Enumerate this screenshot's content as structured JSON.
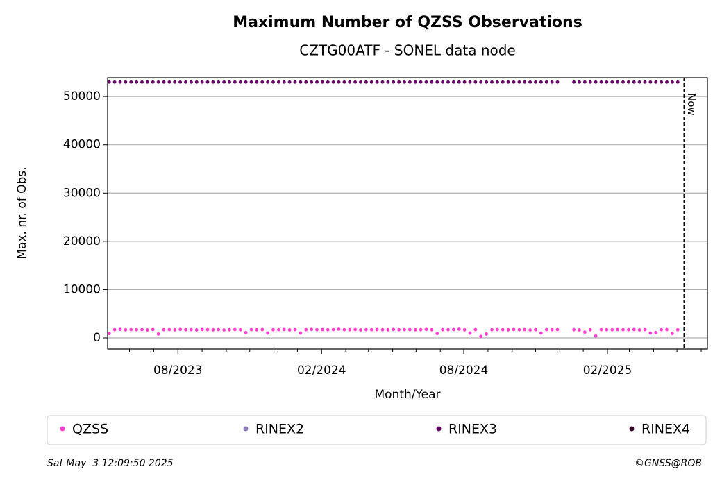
{
  "chart_data": {
    "type": "scatter",
    "title": "Maximum Number of QZSS Observations",
    "subtitle": "CZTG00ATF - SONEL data node",
    "xlabel": "Month/Year",
    "ylabel": "Max. nr. of Obs.",
    "x": [
      -88,
      -81,
      -74,
      -67,
      -60,
      -53,
      -46,
      -39,
      -32,
      -25,
      -18,
      -11,
      -4,
      3,
      10,
      17,
      24,
      31,
      38,
      45,
      52,
      59,
      66,
      73,
      80,
      87,
      94,
      101,
      108,
      115,
      122,
      129,
      136,
      143,
      150,
      157,
      164,
      171,
      178,
      185,
      192,
      199,
      206,
      213,
      220,
      227,
      234,
      241,
      248,
      255,
      262,
      269,
      276,
      283,
      290,
      297,
      304,
      311,
      318,
      325,
      332,
      339,
      346,
      353,
      360,
      367,
      374,
      381,
      388,
      395,
      402,
      409,
      416,
      423,
      430,
      437,
      444,
      451,
      458,
      465,
      472,
      479,
      486,
      493,
      500,
      507,
      514,
      521,
      528,
      535,
      542,
      549,
      556,
      563,
      570,
      577,
      584,
      591,
      598,
      605,
      612,
      619,
      626,
      633,
      640
    ],
    "series": [
      {
        "name": "QZSS",
        "color": "#ff40cf",
        "values": [
          900,
          1700,
          1750,
          1680,
          1720,
          1690,
          1710,
          1650,
          1740,
          800,
          1700,
          1720,
          1680,
          1750,
          1690,
          1710,
          1660,
          1730,
          1700,
          1680,
          1720,
          1650,
          1700,
          1740,
          1690,
          1100,
          1710,
          1680,
          1720,
          1000,
          1700,
          1690,
          1730,
          1660,
          1710,
          1000,
          1700,
          1750,
          1690,
          1720,
          1680,
          1710,
          1800,
          1690,
          1700,
          1730,
          1660,
          1710,
          1690,
          1720,
          1700,
          1680,
          1740,
          1690,
          1710,
          1720,
          1680,
          1700,
          1750,
          1690,
          900,
          1710,
          1700,
          1730,
          1800,
          1680,
          1000,
          1720,
          300,
          800,
          1690,
          1710,
          1700,
          1680,
          1740,
          1690,
          1720,
          1650,
          1700,
          1000,
          1710,
          1690,
          1720,
          null,
          null,
          1700,
          1650,
          1200,
          1690,
          400,
          1710,
          1700,
          1680,
          1720,
          1690,
          1700,
          1730,
          1660,
          1710,
          1000,
          1100,
          1700,
          1720,
          900,
          1680
        ]
      },
      {
        "name": "RINEX2",
        "color": "#8878b8",
        "values": [
          null,
          null,
          null,
          null,
          null,
          null,
          null,
          null,
          null,
          null,
          null,
          null,
          null,
          null,
          null,
          null,
          null,
          null,
          null,
          null,
          null,
          null,
          null,
          null,
          null,
          null,
          null,
          null,
          null,
          null,
          null,
          null,
          null,
          null,
          null,
          null,
          null,
          null,
          null,
          null,
          null,
          null,
          null,
          null,
          null,
          null,
          null,
          null,
          null,
          null,
          null,
          null,
          null,
          null,
          null,
          null,
          null,
          null,
          null,
          null,
          null,
          null,
          null,
          null,
          null,
          null,
          null,
          null,
          null,
          null,
          null,
          null,
          null,
          null,
          null,
          null,
          null,
          null,
          null,
          null,
          null,
          null,
          null,
          null,
          null,
          null,
          null,
          null,
          null,
          null,
          null,
          null,
          null,
          null,
          null,
          null,
          null,
          null,
          null,
          null,
          null,
          null,
          null,
          null,
          null
        ]
      },
      {
        "name": "RINEX3",
        "color": "#660066",
        "values": [
          53000,
          53000,
          53000,
          53000,
          53000,
          53000,
          53000,
          53000,
          53000,
          53000,
          53000,
          53000,
          53000,
          53000,
          53000,
          53000,
          53000,
          53000,
          53000,
          53000,
          53000,
          53000,
          53000,
          53000,
          53000,
          53000,
          53000,
          53000,
          53000,
          53000,
          53000,
          53000,
          53000,
          53000,
          53000,
          53000,
          53000,
          53000,
          53000,
          53000,
          53000,
          53000,
          53000,
          53000,
          53000,
          53000,
          53000,
          53000,
          53000,
          53000,
          53000,
          53000,
          53000,
          53000,
          53000,
          53000,
          53000,
          53000,
          53000,
          53000,
          53000,
          53000,
          53000,
          53000,
          53000,
          53000,
          53000,
          53000,
          53000,
          53000,
          53000,
          53000,
          53000,
          53000,
          53000,
          53000,
          53000,
          53000,
          53000,
          53000,
          53000,
          53000,
          53000,
          null,
          null,
          53000,
          53000,
          53000,
          53000,
          53000,
          53000,
          53000,
          53000,
          53000,
          53000,
          53000,
          53000,
          53000,
          53000,
          53000,
          53000,
          53000,
          53000,
          53000,
          53000
        ]
      },
      {
        "name": "RINEX4",
        "color": "#330022",
        "values": [
          null,
          null,
          null,
          null,
          null,
          null,
          null,
          null,
          null,
          null,
          null,
          null,
          null,
          null,
          null,
          null,
          null,
          null,
          null,
          null,
          null,
          null,
          null,
          null,
          null,
          null,
          null,
          null,
          null,
          null,
          null,
          null,
          null,
          null,
          null,
          null,
          null,
          null,
          null,
          null,
          null,
          null,
          null,
          null,
          null,
          null,
          null,
          null,
          null,
          null,
          null,
          null,
          null,
          null,
          null,
          null,
          null,
          null,
          null,
          null,
          null,
          null,
          null,
          null,
          null,
          null,
          null,
          null,
          null,
          null,
          null,
          null,
          null,
          null,
          null,
          null,
          null,
          null,
          null,
          null,
          null,
          null,
          null,
          null,
          null,
          null,
          null,
          null,
          null,
          null,
          null,
          null,
          null,
          null,
          null,
          null,
          null,
          null,
          null,
          null,
          null,
          null,
          null,
          null,
          null
        ]
      }
    ],
    "xlim": [
      -90,
      678
    ],
    "xticks": [
      {
        "value": 0,
        "label": "08/2023"
      },
      {
        "value": 184,
        "label": "02/2024"
      },
      {
        "value": 366,
        "label": "08/2024"
      },
      {
        "value": 550,
        "label": "02/2025"
      }
    ],
    "xminor": [
      -62,
      -31,
      31,
      62,
      92,
      123,
      153,
      215,
      244,
      275,
      305,
      336,
      397,
      428,
      458,
      489,
      519,
      578,
      609,
      639,
      670
    ],
    "ylim": [
      -2300,
      53900
    ],
    "yticks": [
      0,
      10000,
      20000,
      30000,
      40000,
      50000
    ],
    "grid": true,
    "now": {
      "x": 648,
      "label": "Now"
    },
    "footer_left": "Sat May  3 12:09:50 2025",
    "footer_right": "©GNSS@ROB"
  }
}
